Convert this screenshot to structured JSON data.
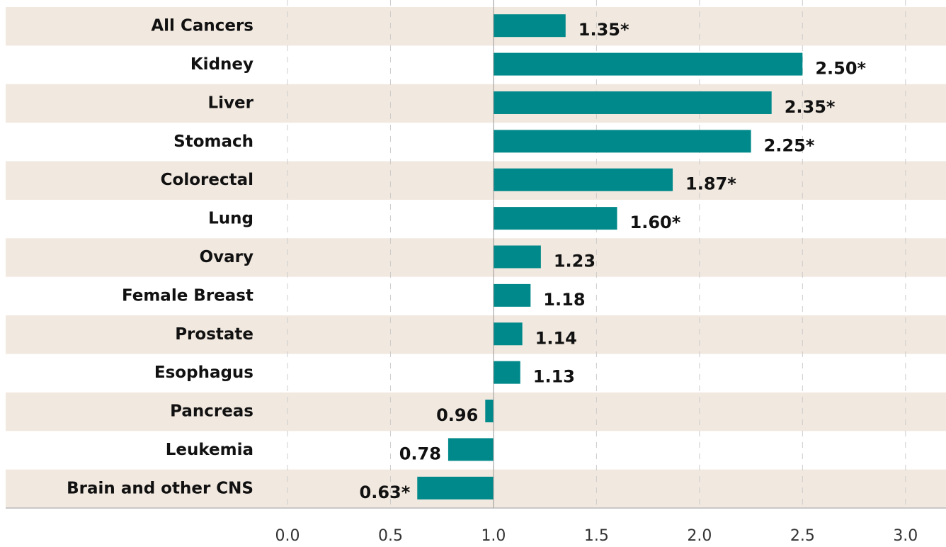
{
  "chart_data": {
    "type": "bar",
    "orientation": "horizontal",
    "categories": [
      "All Cancers",
      "Kidney",
      "Liver",
      "Stomach",
      "Colorectal",
      "Lung",
      "Ovary",
      "Female Breast",
      "Prostate",
      "Esophagus",
      "Pancreas",
      "Leukemia",
      "Brain and other CNS"
    ],
    "values": [
      1.35,
      2.5,
      2.35,
      2.25,
      1.87,
      1.6,
      1.23,
      1.18,
      1.14,
      1.13,
      0.96,
      0.78,
      0.63
    ],
    "value_labels": [
      "1.35*",
      "2.50*",
      "2.35*",
      "2.25*",
      "1.87*",
      "1.60*",
      "1.23",
      "1.18",
      "1.14",
      "1.13",
      "0.96",
      "0.78",
      "0.63*"
    ],
    "color": "#00898a",
    "baseline": 1,
    "xlim": [
      0,
      3.2
    ],
    "xticks": [
      {
        "value": 0,
        "label": "0.0"
      },
      {
        "value": 0.5,
        "label": "0.5"
      },
      {
        "value": 1,
        "label": "1.0"
      },
      {
        "value": 1.5,
        "label": "1.5"
      },
      {
        "value": 2,
        "label": "2.0"
      },
      {
        "value": 2.5,
        "label": "2.5"
      },
      {
        "value": 3,
        "label": "3.0"
      }
    ],
    "grid": true
  }
}
